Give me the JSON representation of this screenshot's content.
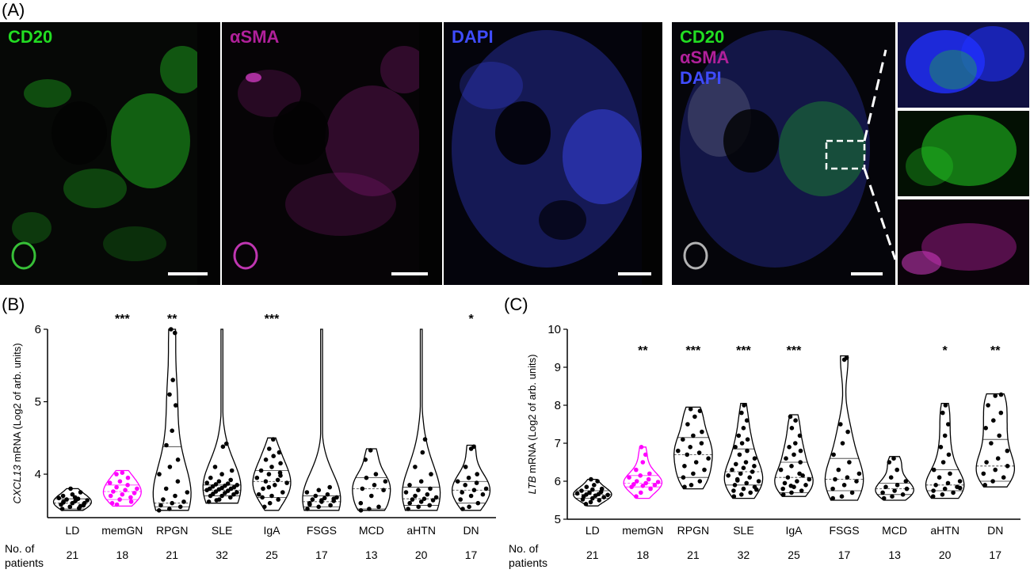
{
  "panel_labels": {
    "a": "(A)",
    "b": "(B)",
    "c": "(C)"
  },
  "micrographs": {
    "colors": {
      "cd20": "#22dd22",
      "asma": "#b0209a",
      "dapi": "#3f4cff",
      "background": "#050505"
    },
    "panels": [
      {
        "labels": [
          "CD20"
        ],
        "label_colors": [
          "#22dd22"
        ]
      },
      {
        "labels": [
          "αSMA"
        ],
        "label_colors": [
          "#b0209a"
        ]
      },
      {
        "labels": [
          "DAPI"
        ],
        "label_colors": [
          "#3f4cff"
        ]
      },
      {
        "labels": [
          "CD20",
          "αSMA",
          "DAPI"
        ],
        "label_colors": [
          "#22dd22",
          "#b0209a",
          "#3f4cff"
        ]
      }
    ],
    "insets": [
      "merge-zoom",
      "cd20-zoom",
      "asma-zoom"
    ]
  },
  "patients_label_line1": "No. of",
  "patients_label_line2": "patients",
  "chart_data": [
    {
      "type": "violin",
      "panel": "(B)",
      "ylabel_gene": "CXCL13",
      "ylabel_rest": " mRNA (Log2 of arb. units)",
      "ylim": [
        3.4,
        6.0
      ],
      "yticks": [
        "4",
        "5",
        "6"
      ],
      "ytick_values": [
        4,
        5,
        6
      ],
      "categories": [
        "LD",
        "memGN",
        "RPGN",
        "SLE",
        "IgA",
        "FSGS",
        "MCD",
        "aHTN",
        "DN"
      ],
      "n_patients": [
        "21",
        "18",
        "21",
        "32",
        "25",
        "17",
        "13",
        "20",
        "17"
      ],
      "significance": [
        "",
        "***",
        "**",
        "",
        "***",
        "",
        "",
        "",
        "*"
      ],
      "highlight_category": "memGN",
      "highlight_color": "#ff00ff",
      "groups": [
        {
          "min": 3.5,
          "max": 3.8,
          "q1": 3.52,
          "median": 3.6,
          "q3": 3.66,
          "points": [
            3.52,
            3.55,
            3.56,
            3.58,
            3.6,
            3.6,
            3.62,
            3.63,
            3.64,
            3.65,
            3.66,
            3.67,
            3.55,
            3.53,
            3.7,
            3.72,
            3.57,
            3.61,
            3.68,
            3.75,
            3.8
          ]
        },
        {
          "min": 3.56,
          "max": 4.05,
          "q1": 3.65,
          "median": 3.76,
          "q3": 3.85,
          "points": [
            3.6,
            3.65,
            3.68,
            3.7,
            3.72,
            3.74,
            3.76,
            3.78,
            3.8,
            3.82,
            3.85,
            3.88,
            3.9,
            3.95,
            4.0,
            4.02,
            3.62,
            3.58
          ]
        },
        {
          "min": 3.5,
          "max": 6.0,
          "q1": 3.55,
          "median": 3.6,
          "q3": 4.38,
          "points": [
            3.5,
            3.52,
            3.55,
            3.57,
            3.6,
            3.62,
            3.65,
            3.7,
            3.75,
            3.8,
            3.9,
            4.0,
            4.1,
            4.2,
            4.4,
            4.6,
            4.95,
            5.1,
            5.3,
            5.95,
            6.0
          ]
        },
        {
          "min": 3.6,
          "max": 6.0,
          "q1": 3.7,
          "median": 3.78,
          "q3": 3.85,
          "points": [
            3.62,
            3.65,
            3.68,
            3.7,
            3.7,
            3.72,
            3.73,
            3.74,
            3.75,
            3.76,
            3.77,
            3.78,
            3.79,
            3.8,
            3.8,
            3.81,
            3.82,
            3.83,
            3.84,
            3.85,
            3.86,
            3.87,
            3.88,
            3.9,
            3.92,
            3.95,
            4.0,
            4.05,
            4.1,
            4.38,
            4.42,
            3.64
          ]
        },
        {
          "min": 3.5,
          "max": 4.5,
          "q1": 3.68,
          "median": 3.9,
          "q3": 4.05,
          "points": [
            3.55,
            3.6,
            3.65,
            3.68,
            3.7,
            3.75,
            3.8,
            3.85,
            3.88,
            3.9,
            3.92,
            3.95,
            4.0,
            4.02,
            4.05,
            4.1,
            4.15,
            4.2,
            4.25,
            4.3,
            4.35,
            4.48,
            3.72,
            3.82,
            3.98
          ]
        },
        {
          "min": 3.5,
          "max": 6.0,
          "q1": 3.55,
          "median": 3.62,
          "q3": 3.7,
          "points": [
            3.52,
            3.55,
            3.57,
            3.6,
            3.62,
            3.63,
            3.65,
            3.67,
            3.68,
            3.7,
            3.72,
            3.75,
            3.78,
            3.82,
            3.58,
            3.64,
            3.66
          ]
        },
        {
          "min": 3.5,
          "max": 4.35,
          "q1": 3.52,
          "median": 3.8,
          "q3": 3.95,
          "points": [
            3.5,
            3.52,
            3.55,
            3.6,
            3.7,
            3.78,
            3.8,
            3.85,
            3.9,
            3.95,
            4.0,
            4.2,
            4.33
          ]
        },
        {
          "min": 3.5,
          "max": 6.0,
          "q1": 3.57,
          "median": 3.66,
          "q3": 3.82,
          "points": [
            3.52,
            3.55,
            3.57,
            3.6,
            3.62,
            3.64,
            3.65,
            3.66,
            3.68,
            3.7,
            3.72,
            3.75,
            3.78,
            3.8,
            3.85,
            3.9,
            4.0,
            4.1,
            4.3,
            4.48
          ]
        },
        {
          "min": 3.5,
          "max": 4.4,
          "q1": 3.6,
          "median": 3.78,
          "q3": 3.9,
          "points": [
            3.52,
            3.55,
            3.6,
            3.65,
            3.7,
            3.72,
            3.75,
            3.78,
            3.8,
            3.85,
            3.88,
            3.9,
            3.95,
            4.0,
            4.1,
            4.35,
            4.38
          ]
        }
      ]
    },
    {
      "type": "violin",
      "panel": "(C)",
      "ylabel_gene": "LTB",
      "ylabel_rest": " mRNA (Log2 of arb. units)",
      "ylim": [
        5,
        10
      ],
      "yticks": [
        "5",
        "6",
        "7",
        "8",
        "9",
        "10"
      ],
      "ytick_values": [
        5,
        6,
        7,
        8,
        9,
        10
      ],
      "categories": [
        "LD",
        "memGN",
        "RPGN",
        "SLE",
        "IgA",
        "FSGS",
        "MCD",
        "aHTN",
        "DN"
      ],
      "n_patients": [
        "21",
        "18",
        "21",
        "32",
        "25",
        "17",
        "13",
        "20",
        "17"
      ],
      "significance": [
        "",
        "**",
        "***",
        "***",
        "***",
        "",
        "",
        "*",
        "**"
      ],
      "highlight_category": "memGN",
      "highlight_color": "#ff00ff",
      "groups": [
        {
          "min": 5.35,
          "max": 6.05,
          "q1": 5.55,
          "median": 5.65,
          "q3": 5.75,
          "points": [
            5.4,
            5.45,
            5.5,
            5.52,
            5.55,
            5.58,
            5.6,
            5.62,
            5.64,
            5.65,
            5.66,
            5.68,
            5.7,
            5.72,
            5.75,
            5.78,
            5.8,
            5.85,
            5.9,
            6.0,
            6.05
          ]
        },
        {
          "min": 5.55,
          "max": 6.9,
          "q1": 5.85,
          "median": 5.95,
          "q3": 6.15,
          "points": [
            5.6,
            5.7,
            5.8,
            5.85,
            5.88,
            5.9,
            5.92,
            5.95,
            5.98,
            6.0,
            6.05,
            6.1,
            6.15,
            6.2,
            6.3,
            6.5,
            6.7,
            6.9
          ]
        },
        {
          "min": 5.8,
          "max": 7.95,
          "q1": 6.1,
          "median": 6.7,
          "q3": 7.15,
          "points": [
            5.85,
            5.9,
            6.0,
            6.1,
            6.2,
            6.3,
            6.4,
            6.5,
            6.6,
            6.7,
            6.75,
            6.8,
            6.9,
            7.0,
            7.1,
            7.2,
            7.3,
            7.5,
            7.7,
            7.85,
            7.9
          ]
        },
        {
          "min": 5.55,
          "max": 8.05,
          "q1": 5.9,
          "median": 6.25,
          "q3": 6.85,
          "points": [
            5.6,
            5.65,
            5.7,
            5.75,
            5.8,
            5.85,
            5.9,
            5.95,
            6.0,
            6.05,
            6.1,
            6.15,
            6.2,
            6.25,
            6.3,
            6.35,
            6.4,
            6.45,
            6.5,
            6.6,
            6.7,
            6.8,
            6.9,
            7.0,
            7.1,
            7.2,
            7.4,
            7.6,
            7.8,
            8.0,
            5.78,
            6.02
          ]
        },
        {
          "min": 5.6,
          "max": 7.75,
          "q1": 5.7,
          "median": 6.1,
          "q3": 6.5,
          "points": [
            5.65,
            5.7,
            5.75,
            5.8,
            5.85,
            5.9,
            5.95,
            6.0,
            6.05,
            6.1,
            6.2,
            6.3,
            6.4,
            6.5,
            6.6,
            6.7,
            6.8,
            6.9,
            7.0,
            7.2,
            7.4,
            7.6,
            7.7,
            5.88,
            6.15
          ]
        },
        {
          "min": 5.5,
          "max": 9.3,
          "q1": 5.75,
          "median": 6.05,
          "q3": 6.6,
          "points": [
            5.55,
            5.6,
            5.7,
            5.8,
            5.9,
            6.0,
            6.05,
            6.1,
            6.2,
            6.3,
            6.5,
            6.7,
            7.0,
            7.3,
            7.5,
            9.2,
            9.25
          ]
        },
        {
          "min": 5.5,
          "max": 6.65,
          "q1": 5.65,
          "median": 5.8,
          "q3": 5.95,
          "points": [
            5.55,
            5.6,
            5.65,
            5.7,
            5.75,
            5.8,
            5.85,
            5.9,
            6.0,
            6.1,
            6.3,
            6.5,
            6.6
          ]
        },
        {
          "min": 5.55,
          "max": 8.05,
          "q1": 5.75,
          "median": 5.9,
          "q3": 6.3,
          "points": [
            5.6,
            5.65,
            5.7,
            5.75,
            5.8,
            5.85,
            5.9,
            5.95,
            6.0,
            6.1,
            6.2,
            6.3,
            6.5,
            6.7,
            6.9,
            7.2,
            7.5,
            7.8,
            8.0,
            5.82
          ]
        },
        {
          "min": 5.85,
          "max": 8.3,
          "q1": 6.0,
          "median": 6.4,
          "q3": 7.1,
          "points": [
            5.9,
            6.0,
            6.1,
            6.2,
            6.3,
            6.4,
            6.5,
            6.6,
            6.8,
            7.0,
            7.2,
            7.4,
            7.6,
            7.8,
            8.0,
            8.25,
            8.28
          ]
        }
      ]
    }
  ]
}
